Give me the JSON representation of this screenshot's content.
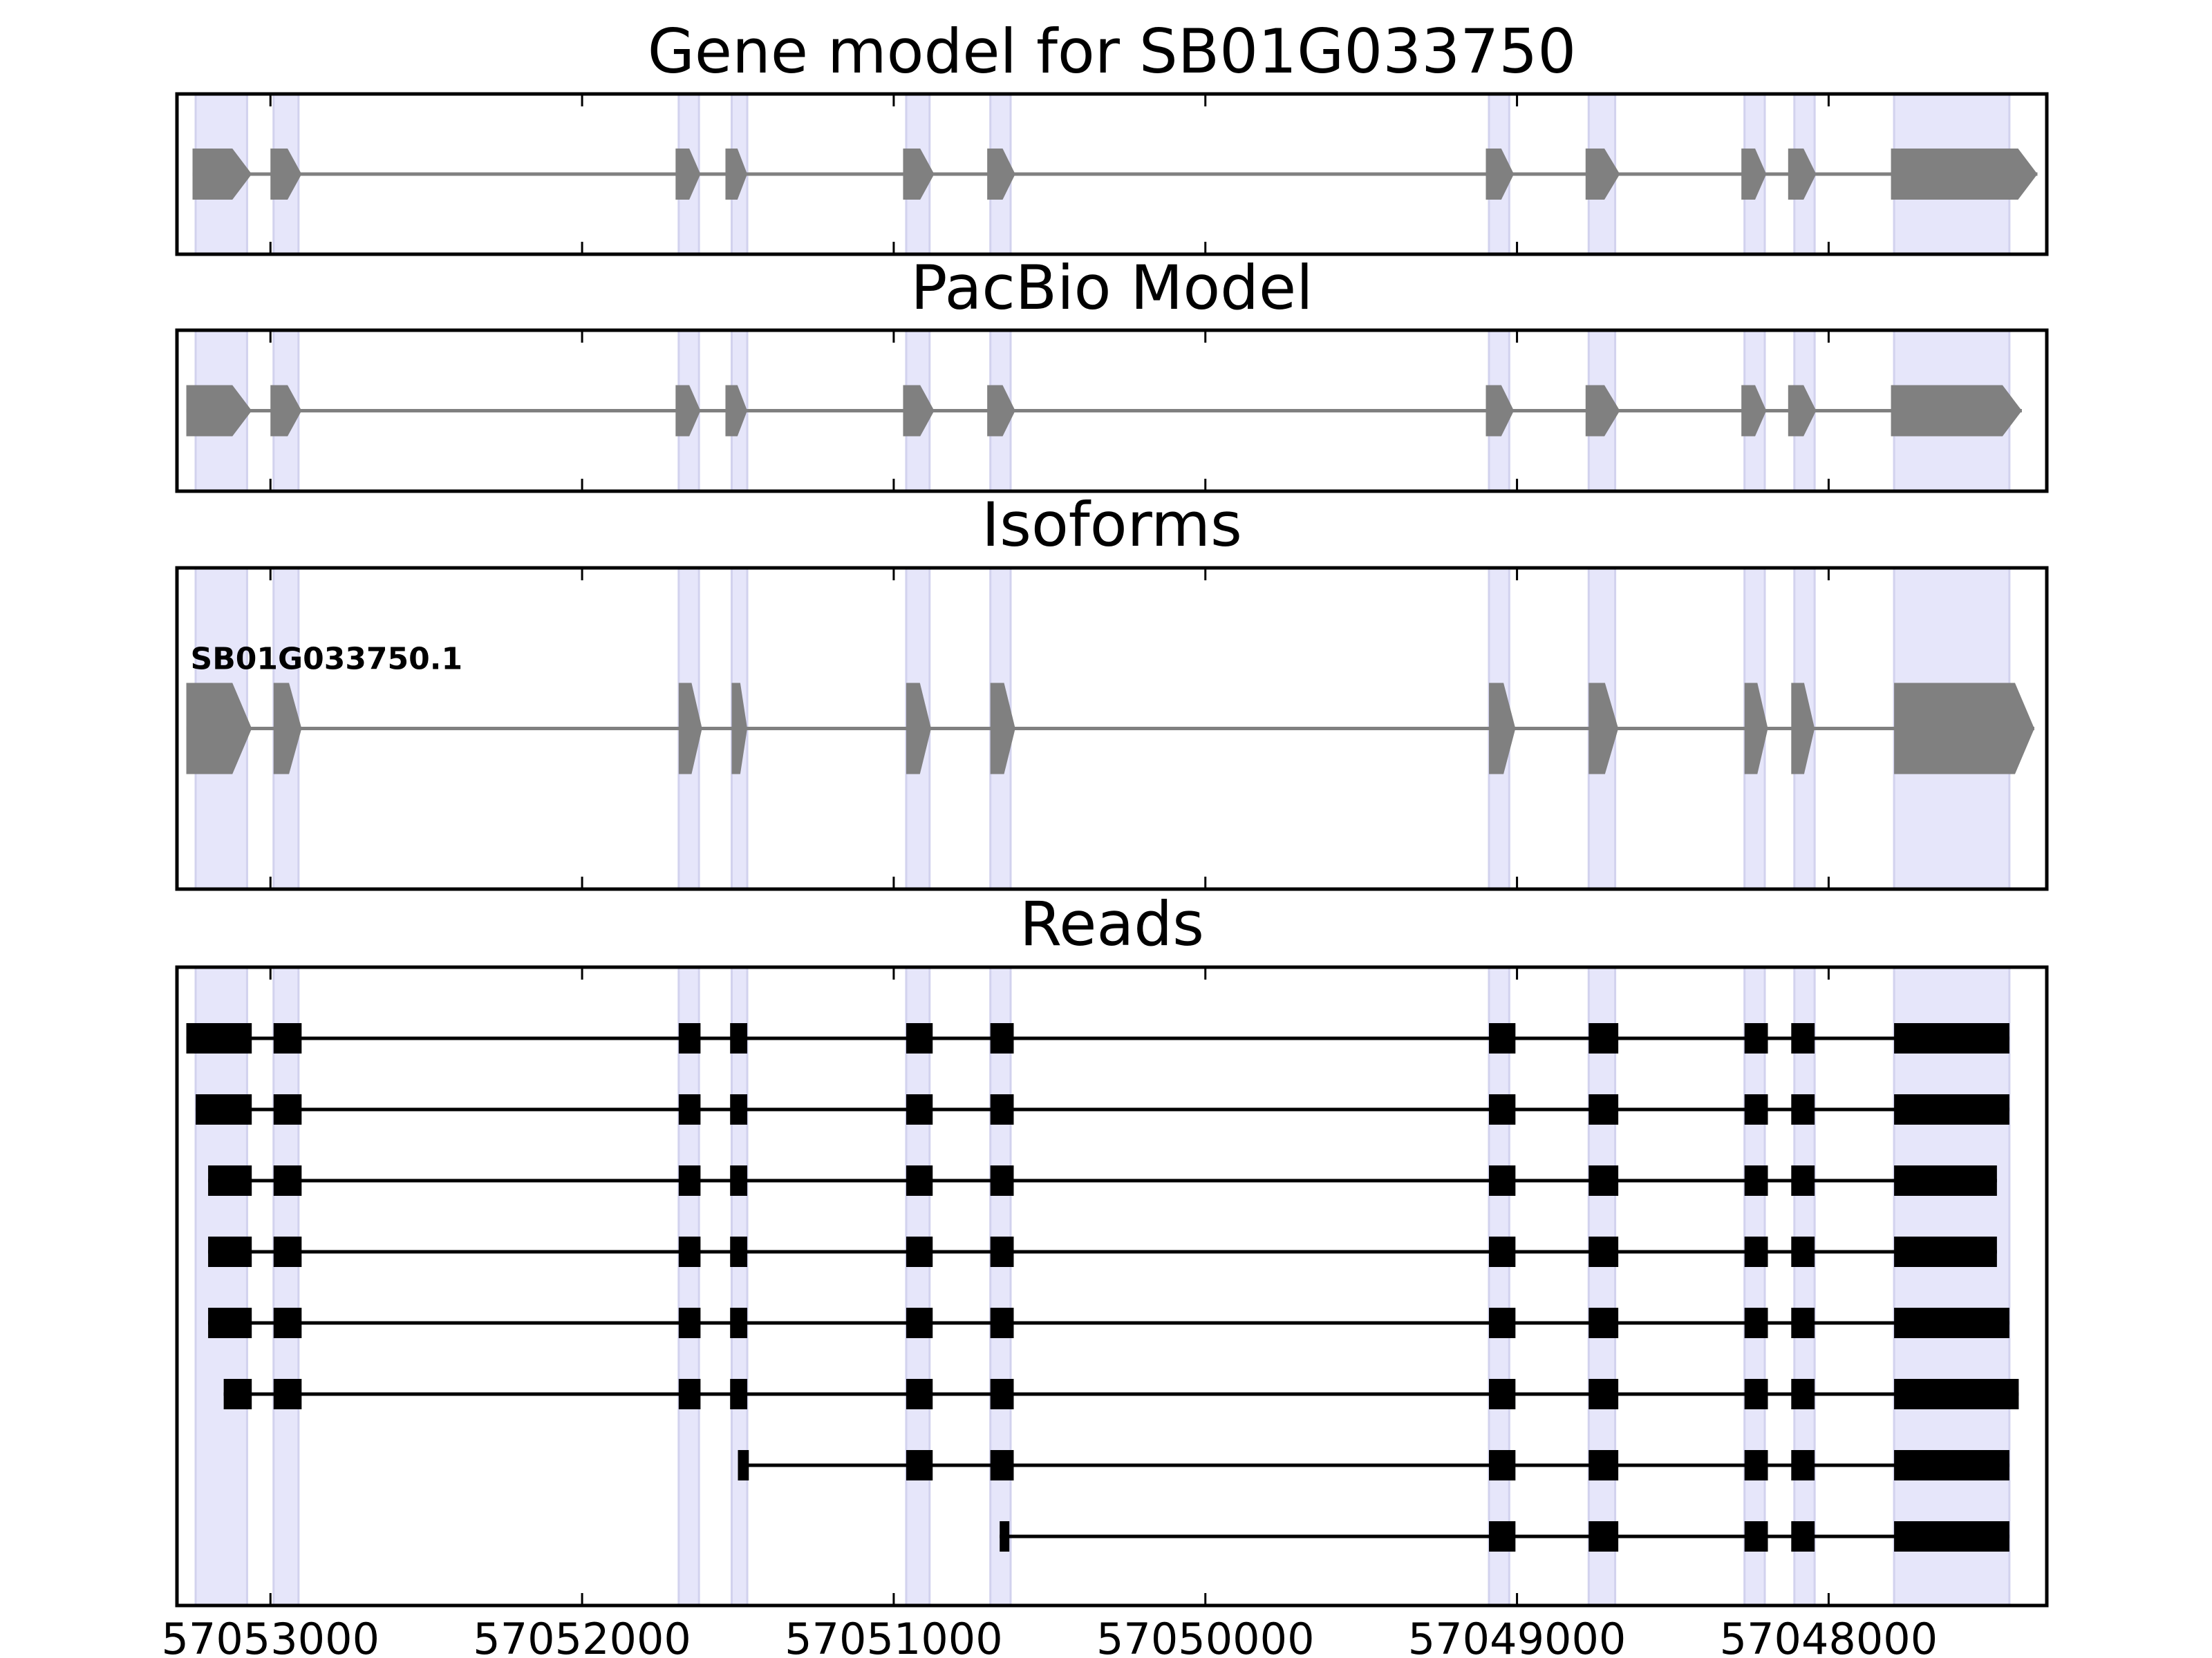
{
  "chart_data": {
    "type": "gene-model-tracks",
    "x_axis": {
      "reversed": true,
      "xlim": [
        57053300,
        57047300
      ],
      "ticks": [
        57053000,
        57052000,
        57051000,
        57050000,
        57049000,
        57048000
      ],
      "tick_labels": [
        "57053000",
        "57052000",
        "57051000",
        "57050000",
        "57049000",
        "57048000"
      ]
    },
    "colors": {
      "exon_highlight": "#e6e6fa",
      "model_feature": "#808080",
      "read_feature": "#000000",
      "frame": "#000000"
    },
    "exon_regions": [
      [
        57053240,
        57053075
      ],
      [
        57052990,
        57052910
      ],
      [
        57051690,
        57051625
      ],
      [
        57051520,
        57051470
      ],
      [
        57050960,
        57050885
      ],
      [
        57050690,
        57050625
      ],
      [
        57049090,
        57049025
      ],
      [
        57048770,
        57048685
      ],
      [
        57048270,
        57048205
      ],
      [
        57048110,
        57048045
      ],
      [
        57047790,
        57047420
      ]
    ],
    "panels": [
      {
        "title": "Gene model for SB01G033750",
        "kind": "model",
        "tracks": [
          {
            "start": 57053250,
            "end": 57047330,
            "exons": [
              [
                57053250,
                57053060
              ],
              [
                57053000,
                57052900
              ],
              [
                57051700,
                57051620
              ],
              [
                57051540,
                57051470
              ],
              [
                57050970,
                57050870
              ],
              [
                57050700,
                57050610
              ],
              [
                57049100,
                57049010
              ],
              [
                57048780,
                57048670
              ],
              [
                57048280,
                57048200
              ],
              [
                57048130,
                57048040
              ],
              [
                57047800,
                57047330
              ]
            ]
          }
        ]
      },
      {
        "title": "PacBio Model",
        "kind": "model",
        "tracks": [
          {
            "start": 57053270,
            "end": 57047380,
            "exons": [
              [
                57053270,
                57053060
              ],
              [
                57053000,
                57052900
              ],
              [
                57051700,
                57051620
              ],
              [
                57051540,
                57051470
              ],
              [
                57050970,
                57050870
              ],
              [
                57050700,
                57050610
              ],
              [
                57049100,
                57049010
              ],
              [
                57048780,
                57048670
              ],
              [
                57048280,
                57048200
              ],
              [
                57048130,
                57048040
              ],
              [
                57047800,
                57047380
              ]
            ]
          }
        ]
      },
      {
        "title": "Isoforms",
        "kind": "model",
        "tracks": [
          {
            "label": "SB01G033750.1",
            "start": 57053270,
            "end": 57047340,
            "exons": [
              [
                57053270,
                57053060
              ],
              [
                57052990,
                57052900
              ],
              [
                57051690,
                57051615
              ],
              [
                57051520,
                57051470
              ],
              [
                57050960,
                57050880
              ],
              [
                57050690,
                57050610
              ],
              [
                57049090,
                57049005
              ],
              [
                57048770,
                57048675
              ],
              [
                57048270,
                57048195
              ],
              [
                57048120,
                57048045
              ],
              [
                57047790,
                57047340
              ]
            ]
          }
        ]
      },
      {
        "title": "Reads",
        "kind": "reads",
        "tracks": [
          {
            "start": 57053270,
            "end": 57047420,
            "exons": [
              [
                57053270,
                57053060
              ],
              [
                57052990,
                57052900
              ],
              [
                57051690,
                57051620
              ],
              [
                57051525,
                57051470
              ],
              [
                57050960,
                57050875
              ],
              [
                57050690,
                57050615
              ],
              [
                57049090,
                57049005
              ],
              [
                57048770,
                57048675
              ],
              [
                57048270,
                57048195
              ],
              [
                57048120,
                57048045
              ],
              [
                57047790,
                57047420
              ]
            ]
          },
          {
            "start": 57053240,
            "end": 57047420,
            "exons": [
              [
                57053240,
                57053060
              ],
              [
                57052990,
                57052900
              ],
              [
                57051690,
                57051620
              ],
              [
                57051525,
                57051470
              ],
              [
                57050960,
                57050875
              ],
              [
                57050690,
                57050615
              ],
              [
                57049090,
                57049005
              ],
              [
                57048770,
                57048675
              ],
              [
                57048270,
                57048195
              ],
              [
                57048120,
                57048045
              ],
              [
                57047790,
                57047420
              ]
            ]
          },
          {
            "start": 57053200,
            "end": 57047460,
            "exons": [
              [
                57053200,
                57053060
              ],
              [
                57052990,
                57052900
              ],
              [
                57051690,
                57051620
              ],
              [
                57051525,
                57051470
              ],
              [
                57050960,
                57050875
              ],
              [
                57050690,
                57050615
              ],
              [
                57049090,
                57049005
              ],
              [
                57048770,
                57048675
              ],
              [
                57048270,
                57048195
              ],
              [
                57048120,
                57048045
              ],
              [
                57047790,
                57047460
              ]
            ]
          },
          {
            "start": 57053200,
            "end": 57047460,
            "exons": [
              [
                57053200,
                57053060
              ],
              [
                57052990,
                57052900
              ],
              [
                57051690,
                57051620
              ],
              [
                57051525,
                57051470
              ],
              [
                57050960,
                57050875
              ],
              [
                57050690,
                57050615
              ],
              [
                57049090,
                57049005
              ],
              [
                57048770,
                57048675
              ],
              [
                57048270,
                57048195
              ],
              [
                57048120,
                57048045
              ],
              [
                57047790,
                57047460
              ]
            ]
          },
          {
            "start": 57053200,
            "end": 57047420,
            "exons": [
              [
                57053200,
                57053060
              ],
              [
                57052990,
                57052900
              ],
              [
                57051690,
                57051620
              ],
              [
                57051525,
                57051470
              ],
              [
                57050960,
                57050875
              ],
              [
                57050690,
                57050615
              ],
              [
                57049090,
                57049005
              ],
              [
                57048770,
                57048675
              ],
              [
                57048270,
                57048195
              ],
              [
                57048120,
                57048045
              ],
              [
                57047790,
                57047420
              ]
            ]
          },
          {
            "start": 57053150,
            "end": 57047390,
            "exons": [
              [
                57053150,
                57053060
              ],
              [
                57052990,
                57052900
              ],
              [
                57051690,
                57051620
              ],
              [
                57051525,
                57051470
              ],
              [
                57050960,
                57050875
              ],
              [
                57050690,
                57050615
              ],
              [
                57049090,
                57049005
              ],
              [
                57048770,
                57048675
              ],
              [
                57048270,
                57048195
              ],
              [
                57048120,
                57048045
              ],
              [
                57047790,
                57047390
              ]
            ]
          },
          {
            "start": 57051500,
            "end": 57047420,
            "exons": [
              [
                57051500,
                57051465
              ],
              [
                57050960,
                57050875
              ],
              [
                57050690,
                57050615
              ],
              [
                57049090,
                57049005
              ],
              [
                57048770,
                57048675
              ],
              [
                57048270,
                57048195
              ],
              [
                57048120,
                57048045
              ],
              [
                57047790,
                57047420
              ]
            ]
          },
          {
            "start": 57050660,
            "end": 57047420,
            "exons": [
              [
                57050660,
                57050630
              ],
              [
                57049090,
                57049005
              ],
              [
                57048770,
                57048675
              ],
              [
                57048270,
                57048195
              ],
              [
                57048120,
                57048045
              ],
              [
                57047790,
                57047420
              ]
            ]
          }
        ]
      }
    ]
  }
}
